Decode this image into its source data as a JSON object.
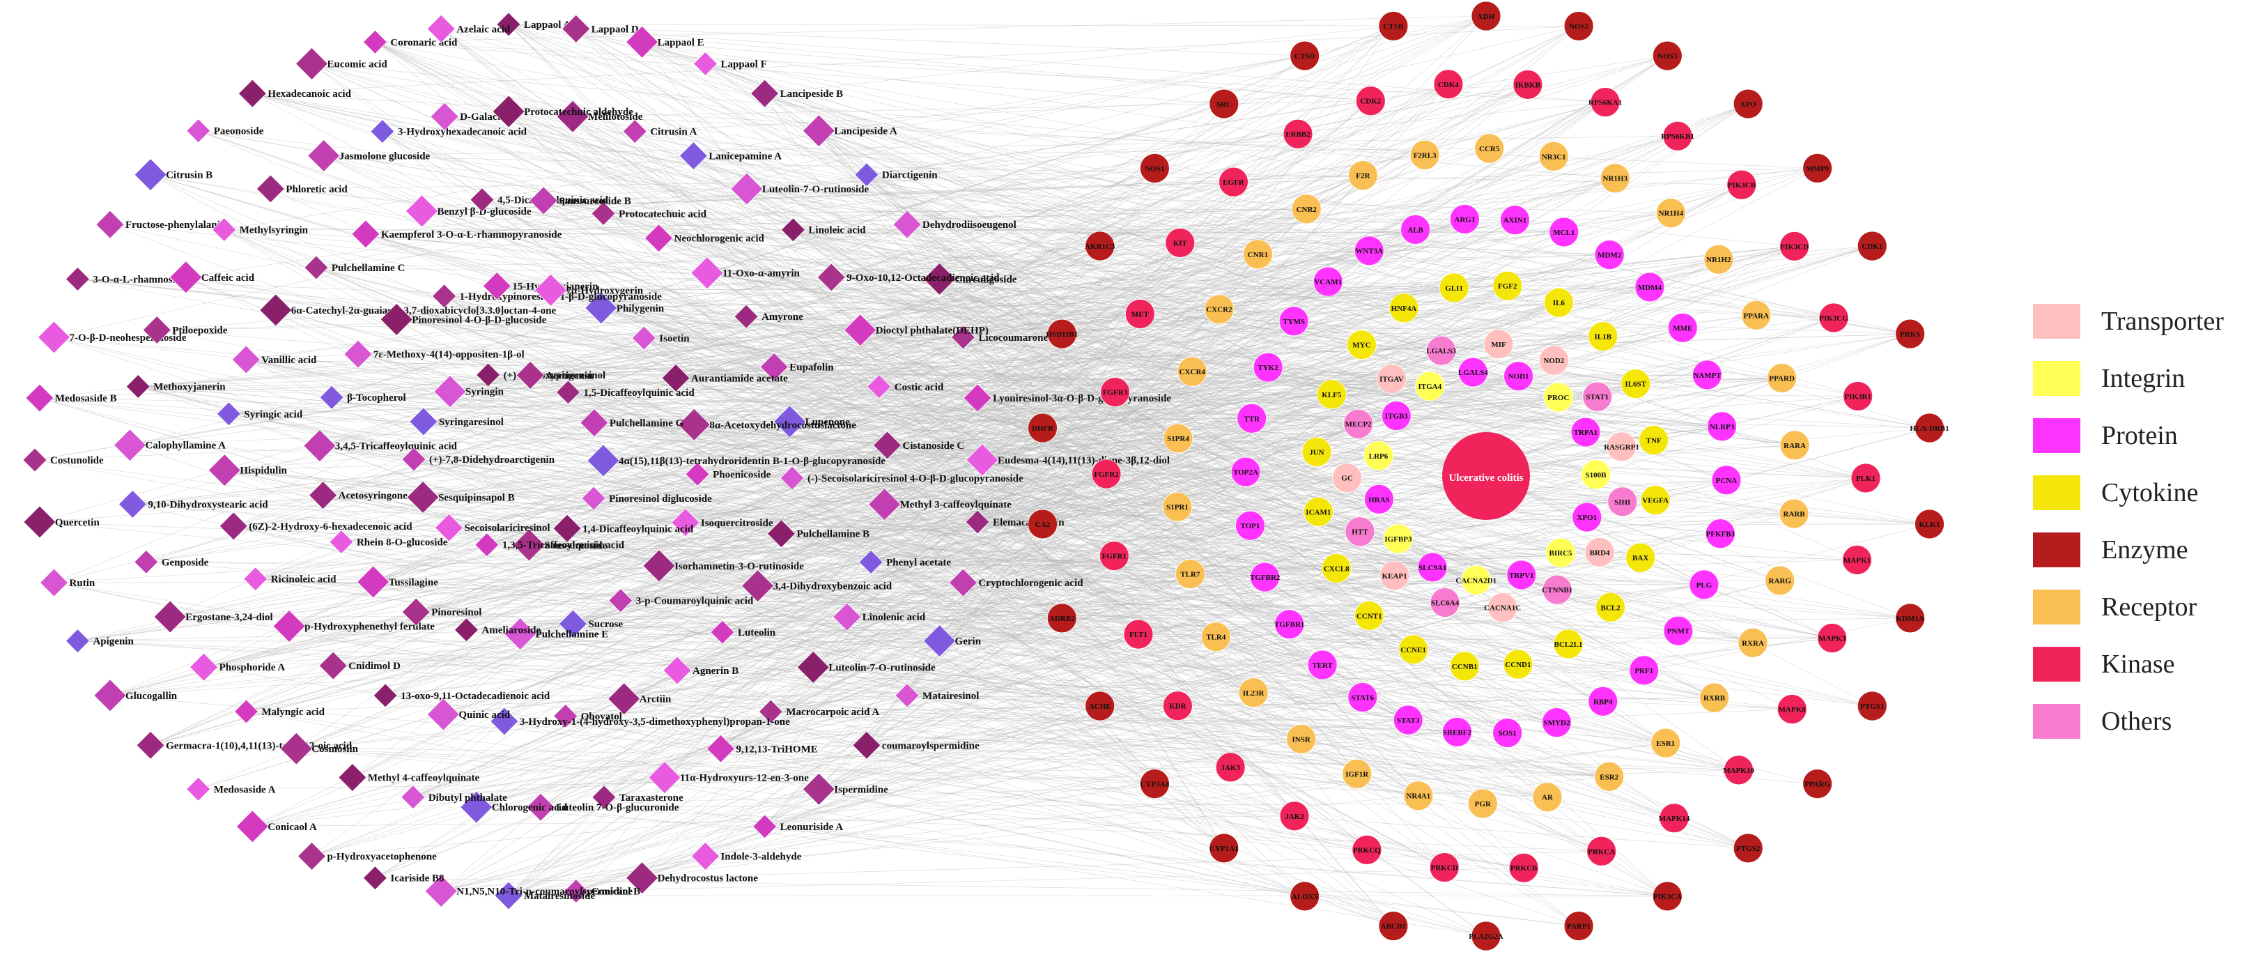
{
  "legend": [
    {
      "label": "Transporter",
      "color": "#ffbfbf"
    },
    {
      "label": "Integrin",
      "color": "#ffff55"
    },
    {
      "label": "Protein",
      "color": "#ff33ff"
    },
    {
      "label": "Cytokine",
      "color": "#f5e60a"
    },
    {
      "label": "Enzyme",
      "color": "#b71c1c"
    },
    {
      "label": "Receptor",
      "color": "#f9bf52"
    },
    {
      "label": "Kinase",
      "color": "#f0245a"
    },
    {
      "label": "Others",
      "color": "#f77bcf"
    }
  ],
  "center_node": {
    "label": "Ulcerative colitis",
    "color": "#f0245a"
  },
  "compounds": [
    "Lappaol A",
    "Lappaol D",
    "Lappaol E",
    "Lappaol F",
    "Lancipeside B",
    "Lancipeside A",
    "Diarctigenin",
    "Dehydrodiisoeugenol",
    "Curculigoside",
    "Licocoumarone",
    "Lyoniresinol-3α-O-β-D-glucopyranoside",
    "Eudesma-4(14),11(13)-diene-3β,12-diol",
    "Elemacarmanin",
    "Cryptochlorogenic acid",
    "Gerin",
    "Matairesinol",
    "coumaroylspermidine",
    "Ispermidine",
    "Leonuriside A",
    "Indole-3-aldehyde",
    "Dehydrocostus lactone",
    "Conicaol B",
    "Matairesinoside",
    "N1,N5,N10-Tri-p-coumaroylspermidine",
    "Icariside B8",
    "p-Hydroxyacetophenone",
    "Conicaol A",
    "Medosaside A",
    "Germacra-1(10),4,11(13)-trien-12-oic acid",
    "Glucogallin",
    "Apigenin",
    "Rutin",
    "Quercetin",
    "Costunolide",
    "Medosaside B",
    "7-O-β-D-neohesperidoside",
    "3-O-α-L-rhamnoside",
    "Fructose-phenylalanine",
    "Citrusin B",
    "Paeonoside",
    "Hexadecanoic acid",
    "Eucomic acid",
    "Coronaric acid",
    "Azelaic acid",
    "Melilotoside",
    "Citrusin A",
    "Lanicepamine A",
    "Luteolin-7-O-rutinoside",
    "Linoleic acid",
    "9-Oxo-10,12-Octadecadienoic acid",
    "Dioctyl phthalate(DEHP)",
    "Costic acid",
    "Cistanoside C",
    "Methyl 3-caffeoylquinate",
    "Phenyl acetate",
    "Linolenic acid",
    "Luteolin-7-O-rutinoside",
    "Macrocarpoic acid A",
    "9,12,13-TriHOME",
    "11α-Hydroxyurs-12-en-3-one",
    "Taraxasterone",
    "Luteolin 7-O-β-glucuronide",
    "Chlorogenic acid",
    "Dibutyl phthalate",
    "Methyl 4-caffeoylquinate",
    "Cosmosiin",
    "Malyngic acid",
    "Phosphoride A",
    "Ergostane-3,24-diol",
    "Genposide",
    "9,10-Dihydroxystearic acid",
    "Calophyllamine A",
    "Methoxyjanerin",
    "Ptiloepoxide",
    "Caffeic acid",
    "Methylsyringin",
    "Phloretic acid",
    "Jasmolone glucoside",
    "3-Hydroxyhexadecanoic acid",
    "D-Galactose",
    "Protocatechuic aldehyde",
    "Protocatechuic acid",
    "Neochlorogenic acid",
    "11-Oxo-α-amyrin",
    "Amyrone",
    "Eupafolin",
    "Lupenone",
    "(-)-Secoisolariciresinol 4-O-β-D-glucopyranoside",
    "Pulchellamine B",
    "3,4-Dihydroxybenzoic acid",
    "Luteolin",
    "Agnerin B",
    "Arctiin",
    "Obovatol",
    "3-Hydroxy-1-(4-hydroxy-3,5-dimethoxyphenyl)propan-1-one",
    "Quinic acid",
    "13-oxo-9,11-Octadecadienoic acid",
    "Cnidimol D",
    "p-Hydroxyphenethyl ferulate",
    "Ricinoleic acid",
    "(6Z)-2-Hydroxy-6-hexadecenoic acid",
    "Hispidulin",
    "Syringic acid",
    "Vanillic acid",
    "6α-Catechyl-2α-guaiacyl-3,7-dioxabicyclo[3.3.0]octan-4-one",
    "Pulchellamine C",
    "Kaempferol 3-O-α-L-rhamnopyranoside",
    "Benzyl β-D-glucoside",
    "4,5-Dicaffeoylquinic acid",
    "Saussureoside B",
    "Philygenin",
    "Isoetin",
    "Aurantiamide acetate",
    "8α-Acetoxydehydrocostuslactone",
    "Phoenicoside",
    "Isoquercitroside",
    "Isorhamnetin-3-O-rutinoside",
    "3-p-Coumaroylquinic acid",
    "Sucrose",
    "Pulchellamine E",
    "Ameliaroside",
    "Pinoresinol",
    "Tussilagine",
    "Rhein 8-O-glucoside",
    "Acetosyringone",
    "3,4,5-Tricaffeoylquinic acid",
    "β-Tocopherol",
    "7ε-Methoxy-4(14)-oppositen-1β-ol",
    "Pinoresinol 4-O-β-D-glucoside",
    "1-Hydroxypinoresinol 1-β-D-glucopyranoside",
    "15-Hydroxyjanerin",
    "7α-Hydroxygerin",
    "1,5-Dicaffeoylquinic acid",
    "Pulchellamine G",
    "4α(15),11β(13)-tetrahydroridentin B-1-O-β-glucopyranoside",
    "Pinoresinol diglucoside",
    "1,4-Dicaffeoylquinic acid",
    "Saussureoside",
    "1,3,5-Tricaffeoylquinic acid",
    "Secoisolariciresinol",
    "Sesquipinsapol B",
    "(+)-7,8-Didehydroarctigenin",
    "Syringaresinol",
    "Syringin",
    "(+)-Acetoxypinoresinol",
    "Arctigenin"
  ],
  "rings": [
    {
      "type": "Enzyme",
      "labels": [
        "XDH",
        "NOS2",
        "NOS3",
        "XPO",
        "MMP9",
        "CDK1",
        "PRKS",
        "HLA-DRB1",
        "KLK1",
        "KDM1A",
        "PTGS1",
        "PPARG",
        "PTGS2",
        "PIK3CA",
        "PARP1",
        "PLA2G2A",
        "ABCB1",
        "ALOX5",
        "CYP1A1",
        "CYP3A4",
        "ACHE",
        "ADRB2",
        "CA2",
        "DHFR",
        "HSD11B1",
        "AKR1C3",
        "NOS1",
        "SRC",
        "CTSD",
        "CTSB"
      ]
    },
    {
      "type": "Kinase",
      "labels": [
        "IKBKB",
        "RPS6KA1",
        "RPS6KB1",
        "PIK3CB",
        "PIK3CD",
        "PIK3CG",
        "PIK3R1",
        "PLK1",
        "MAPK1",
        "MAPK3",
        "MAPK8",
        "MAPK10",
        "MAPK14",
        "PRKCA",
        "PRKCB",
        "PRKCD",
        "PRKCQ",
        "JAK2",
        "JAK3",
        "KDR",
        "FLT1",
        "FGFR1",
        "FGFR2",
        "FGFR3",
        "MET",
        "KIT",
        "EGFR",
        "ERBB2",
        "CDK2",
        "CDK4"
      ]
    },
    {
      "type": "Receptor",
      "labels": [
        "NR3C1",
        "NR1H3",
        "NR1H4",
        "NR1H2",
        "PPARA",
        "PPARD",
        "RARA",
        "RARB",
        "RARG",
        "RXRA",
        "RXRB",
        "ESR1",
        "ESR2",
        "AR",
        "PGR",
        "NR4A1",
        "IGF1R",
        "INSR",
        "IL23R",
        "TLR4",
        "TLR7",
        "S1PR1",
        "S1PR4",
        "CXCR4",
        "CXCR2",
        "CNR1",
        "CNR2",
        "F2R",
        "F2RL3",
        "CCR5"
      ]
    },
    {
      "type": "Protein",
      "labels": [
        "MCL1",
        "MDM2",
        "MDM4",
        "MME",
        "NAMPT",
        "NLRP3",
        "PCNA",
        "PFKFB3",
        "PLG",
        "PNMT",
        "PRF1",
        "RBP4",
        "SMYD2",
        "SOS1",
        "SREBF2",
        "STAT3",
        "STAT6",
        "TERT",
        "TGFBR1",
        "TGFBR2",
        "TOP1",
        "TOP2A",
        "TTR",
        "TYK2",
        "TYMS",
        "VCAM1",
        "WNT3A",
        "ALB",
        "ARG1",
        "AXIN1"
      ]
    },
    {
      "type": "Cytokine",
      "labels": [
        "IL6",
        "IL1B",
        "IL6ST",
        "TNF",
        "VEGFA",
        "BAX",
        "BCL2",
        "BCL2L1",
        "CCND1",
        "CCNB1",
        "CCNE1",
        "CCNT1",
        "CXCL8",
        "ICAM1",
        "JUN",
        "KLF5",
        "MYC",
        "HNF4A",
        "GLI1",
        "FGF2"
      ]
    }
  ],
  "inner_labels": [
    "NOD1",
    "NOD2",
    "PROC",
    "STAT1",
    "TRPA1",
    "RASGRP1",
    "S100B",
    "SIHI",
    "XPO1",
    "BRD4",
    "BIRC5",
    "CTNNB1",
    "TRPV1",
    "CACNA1C",
    "CACNA2D1",
    "SLC6A4",
    "SLC9A1",
    "KEAP1",
    "IGFBP3",
    "HTT",
    "HRAS",
    "GC",
    "LRP6",
    "MECP2",
    "ITGB3",
    "ITGAV",
    "ITGA4",
    "LGALS3",
    "LGALS4",
    "MIF"
  ]
}
